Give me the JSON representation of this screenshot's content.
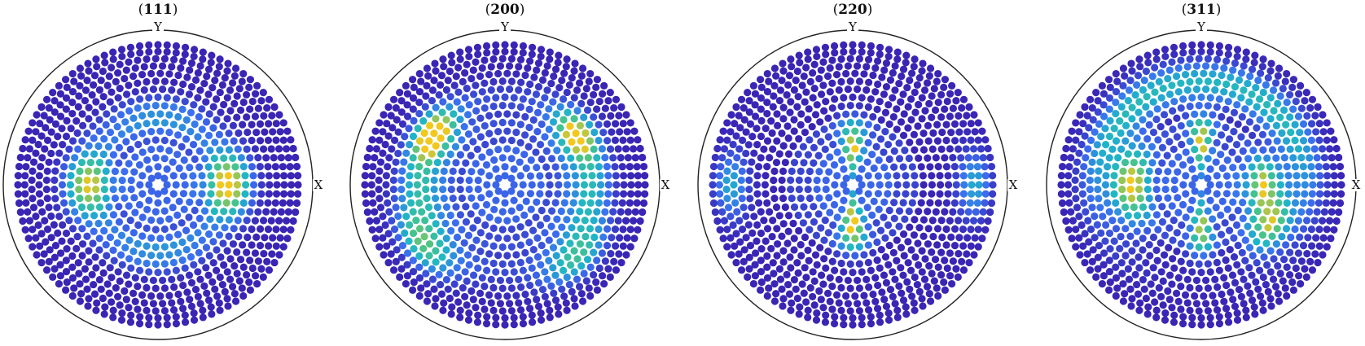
{
  "chart_data": [
    {
      "type": "scatter",
      "title": "(111)",
      "title_hkl": "111",
      "axes": {
        "x_label": "X",
        "y_label": "Y"
      },
      "projection": "equal-area pole figure",
      "color_scale": [
        "#3a1fb0",
        "#3b6ff0",
        "#1fb5c8",
        "#49c489",
        "#f2c81e"
      ],
      "features": [
        {
          "psi_deg": 40,
          "azimuth_deg": 0,
          "width_deg": 12,
          "spread_deg": 25,
          "intensity": 1.0
        },
        {
          "psi_deg": 40,
          "azimuth_deg": 180,
          "width_deg": 12,
          "spread_deg": 25,
          "intensity": 0.9
        },
        {
          "psi_deg": 40,
          "azimuth_deg": 90,
          "width_deg": 10,
          "spread_deg": 60,
          "intensity": 0.35
        },
        {
          "psi_deg": 40,
          "azimuth_deg": 270,
          "width_deg": 10,
          "spread_deg": 60,
          "intensity": 0.35
        }
      ]
    },
    {
      "type": "scatter",
      "title": "(200)",
      "title_hkl": "200",
      "axes": {
        "x_label": "X",
        "y_label": "Y"
      },
      "projection": "equal-area pole figure",
      "color_scale": [
        "#3a1fb0",
        "#3b6ff0",
        "#1fb5c8",
        "#49c489",
        "#f2c81e"
      ],
      "features": [
        {
          "psi_deg": 48,
          "azimuth_deg": 0,
          "width_deg": 12,
          "spread_deg": 60,
          "intensity": 0.55
        },
        {
          "psi_deg": 48,
          "azimuth_deg": 180,
          "width_deg": 12,
          "spread_deg": 60,
          "intensity": 0.6
        },
        {
          "psi_deg": 50,
          "azimuth_deg": 145,
          "width_deg": 10,
          "spread_deg": 16,
          "intensity": 1.0
        },
        {
          "psi_deg": 50,
          "azimuth_deg": 35,
          "width_deg": 10,
          "spread_deg": 16,
          "intensity": 0.8
        },
        {
          "psi_deg": 60,
          "azimuth_deg": 215,
          "width_deg": 10,
          "spread_deg": 20,
          "intensity": 0.6
        },
        {
          "psi_deg": 60,
          "azimuth_deg": 315,
          "width_deg": 10,
          "spread_deg": 20,
          "intensity": 0.55
        }
      ]
    },
    {
      "type": "scatter",
      "title": "(220)",
      "title_hkl": "220",
      "axes": {
        "x_label": "X",
        "y_label": "Y"
      },
      "projection": "equal-area pole figure",
      "color_scale": [
        "#3a1fb0",
        "#3b6ff0",
        "#1fb5c8",
        "#49c489",
        "#f2c81e"
      ],
      "features": [
        {
          "psi_deg": 22,
          "azimuth_deg": 90,
          "width_deg": 14,
          "spread_deg": 14,
          "intensity": 0.85
        },
        {
          "psi_deg": 22,
          "azimuth_deg": 270,
          "width_deg": 14,
          "spread_deg": 14,
          "intensity": 1.0
        },
        {
          "psi_deg": 72,
          "azimuth_deg": 180,
          "width_deg": 10,
          "spread_deg": 14,
          "intensity": 0.45
        },
        {
          "psi_deg": 72,
          "azimuth_deg": 0,
          "width_deg": 10,
          "spread_deg": 14,
          "intensity": 0.45
        }
      ]
    },
    {
      "type": "scatter",
      "title": "(311)",
      "title_hkl": "311",
      "axes": {
        "x_label": "X",
        "y_label": "Y"
      },
      "projection": "equal-area pole figure",
      "color_scale": [
        "#3a1fb0",
        "#3b6ff0",
        "#1fb5c8",
        "#49c489",
        "#f2c81e"
      ],
      "features": [
        {
          "psi_deg": 25,
          "azimuth_deg": 90,
          "width_deg": 14,
          "spread_deg": 12,
          "intensity": 0.9
        },
        {
          "psi_deg": 25,
          "azimuth_deg": 270,
          "width_deg": 14,
          "spread_deg": 12,
          "intensity": 0.8
        },
        {
          "psi_deg": 40,
          "azimuth_deg": 180,
          "width_deg": 10,
          "spread_deg": 30,
          "intensity": 1.0
        },
        {
          "psi_deg": 35,
          "azimuth_deg": 0,
          "width_deg": 10,
          "spread_deg": 25,
          "intensity": 0.85
        },
        {
          "psi_deg": 45,
          "azimuth_deg": 330,
          "width_deg": 10,
          "spread_deg": 20,
          "intensity": 0.85
        },
        {
          "psi_deg": 60,
          "azimuth_deg": 140,
          "width_deg": 12,
          "spread_deg": 60,
          "intensity": 0.5
        },
        {
          "psi_deg": 60,
          "azimuth_deg": 40,
          "width_deg": 12,
          "spread_deg": 60,
          "intensity": 0.5
        }
      ]
    }
  ]
}
